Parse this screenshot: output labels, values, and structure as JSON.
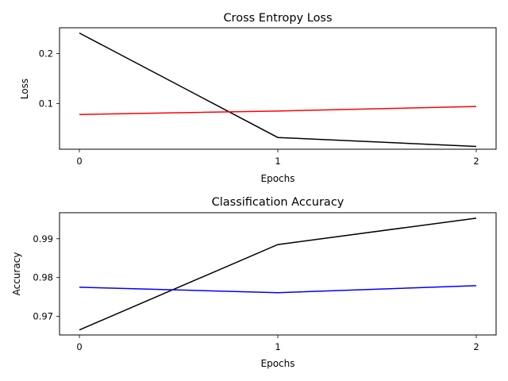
{
  "chart_data": [
    {
      "type": "line",
      "title": "Cross Entropy Loss",
      "xlabel": "Epochs",
      "ylabel": "Loss",
      "x": [
        0,
        1,
        2
      ],
      "xlim": [
        -0.1,
        2.1
      ],
      "ylim": [
        0.0085,
        0.2515
      ],
      "xticks": [
        0,
        1,
        2
      ],
      "yticks": [
        0.1,
        0.2
      ],
      "grid": false,
      "legend": "none",
      "series": [
        {
          "color": "#000000",
          "values": [
            0.241,
            0.032,
            0.014
          ]
        },
        {
          "color": "#ff0000",
          "values": [
            0.078,
            0.085,
            0.094
          ]
        }
      ]
    },
    {
      "type": "line",
      "title": "Classification Accuracy",
      "xlabel": "Epochs",
      "ylabel": "Accuracy",
      "x": [
        0,
        1,
        2
      ],
      "xlim": [
        -0.1,
        2.1
      ],
      "ylim": [
        0.9652,
        0.9967
      ],
      "xticks": [
        0,
        1,
        2
      ],
      "yticks": [
        0.97,
        0.98,
        0.99
      ],
      "grid": false,
      "legend": "none",
      "series": [
        {
          "color": "#000000",
          "values": [
            0.9665,
            0.9885,
            0.9953
          ]
        },
        {
          "color": "#0000ff",
          "values": [
            0.9775,
            0.9761,
            0.9779
          ]
        }
      ]
    }
  ]
}
